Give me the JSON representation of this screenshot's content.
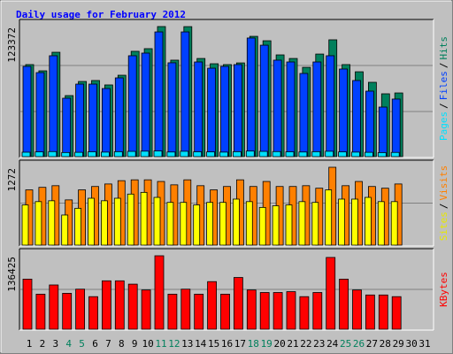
{
  "chart_data": {
    "type": "bar",
    "title": "Daily usage for February 2012",
    "categories": [
      "1",
      "2",
      "3",
      "4",
      "5",
      "6",
      "7",
      "8",
      "9",
      "10",
      "11",
      "12",
      "13",
      "14",
      "15",
      "16",
      "17",
      "18",
      "19",
      "20",
      "21",
      "22",
      "23",
      "24",
      "25",
      "26",
      "27",
      "28",
      "29",
      "30",
      "31"
    ],
    "category_colors": [
      "#000000",
      "#000000",
      "#000000",
      "#00805c",
      "#00805c",
      "#000000",
      "#000000",
      "#000000",
      "#000000",
      "#000000",
      "#00805c",
      "#00805c",
      "#000000",
      "#000000",
      "#000000",
      "#000000",
      "#000000",
      "#00805c",
      "#00805c",
      "#000000",
      "#000000",
      "#000000",
      "#000000",
      "#000000",
      "#00805c",
      "#00805c",
      "#000000",
      "#000000",
      "#000000",
      "#000000",
      "#000000"
    ],
    "separator": "/",
    "panels": [
      {
        "ylim": [
          0,
          123372
        ],
        "yticks": [
          123372
        ],
        "series": [
          {
            "name": "Pages",
            "color": "#00e0ff",
            "values": [
              4200,
              4500,
              4800,
              3900,
              4100,
              4600,
              4300,
              4700,
              5000,
              5200,
              5400,
              4400,
              5100,
              4600,
              4500,
              4300,
              4700,
              5300,
              5000,
              4800,
              4600,
              4400,
              4700,
              5100,
              4500,
              4300,
              4100,
              3800,
              4000,
              null,
              null
            ]
          },
          {
            "name": "Files",
            "color": "#0040ff",
            "values": [
              85600,
              79700,
              95700,
              55400,
              68800,
              68800,
              64600,
              74700,
              95700,
              98200,
              118300,
              89000,
              118300,
              89800,
              83900,
              85600,
              87300,
              112500,
              105700,
              91500,
              89800,
              78900,
              89800,
              95700,
              83100,
              72200,
              62100,
              47000,
              54600,
              null,
              null
            ]
          },
          {
            "name": "Hits",
            "color": "#00805c",
            "values": [
              87300,
              81400,
              99000,
              57900,
              71300,
              72200,
              68000,
              77200,
              99900,
              102400,
              123372,
              91500,
              123300,
              93100,
              88100,
              87300,
              88900,
              114100,
              109900,
              96500,
              93100,
              84700,
              97300,
              110800,
              87300,
              80500,
              70500,
              59600,
              60400,
              null,
              null
            ]
          }
        ]
      },
      {
        "ylim": [
          0,
          1272
        ],
        "yticks": [
          1272
        ],
        "series": [
          {
            "name": "Sites",
            "color": "#ffff00",
            "values": [
              657,
              711,
              725,
              492,
              602,
              766,
              725,
              766,
              834,
              862,
              780,
              698,
              698,
              657,
              698,
              698,
              752,
              711,
              616,
              643,
              657,
              711,
              698,
              903,
              752,
              752,
              780,
              711,
              711,
              null,
              null
            ]
          },
          {
            "name": "Visits",
            "color": "#ff8000",
            "values": [
              903,
              944,
              971,
              739,
              903,
              958,
              999,
              1053,
              1067,
              1067,
              1040,
              985,
              1067,
              971,
              903,
              958,
              1067,
              958,
              1040,
              958,
              958,
              971,
              930,
              1272,
              971,
              1040,
              958,
              930,
              999,
              null,
              null
            ]
          }
        ]
      },
      {
        "ylim": [
          0,
          136425
        ],
        "yticks": [
          136425
        ],
        "series": [
          {
            "name": "KBytes",
            "color": "#ff0000",
            "values": [
              93000,
              65100,
              82200,
              66700,
              74400,
              60500,
              89900,
              89900,
              83700,
              72900,
              136425,
              65100,
              74400,
              65100,
              88400,
              65100,
              96100,
              72900,
              68200,
              68200,
              69800,
              60500,
              68200,
              133300,
              93000,
              72900,
              63600,
              63600,
              60500,
              null,
              null
            ]
          }
        ]
      }
    ]
  }
}
